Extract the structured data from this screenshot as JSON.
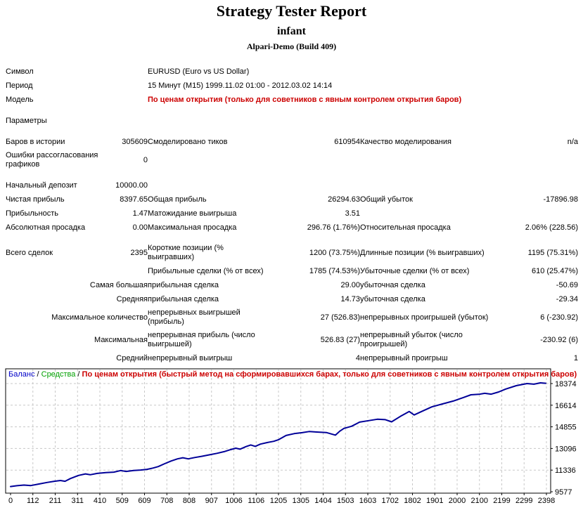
{
  "header": {
    "title": "Strategy Tester Report",
    "expert": "infant",
    "server": "Alpari-Demo (Build 409)"
  },
  "colors": {
    "model_red": "#CC0000",
    "balance_blue": "#0000C8",
    "equity_green": "#00A000",
    "line_navy": "#000098",
    "grid_gray": "#C8C8C8"
  },
  "table": {
    "rows": [
      {
        "cells": [
          {
            "t": "Символ"
          },
          {
            "t": ""
          },
          {
            "t": "EURUSD (Euro vs US Dollar)",
            "s": 4
          }
        ]
      },
      {
        "cells": [
          {
            "t": "Период"
          },
          {
            "t": ""
          },
          {
            "t": "15 Минут (M15) 1999.11.02 01:00 - 2012.03.02 14:14",
            "s": 4
          }
        ]
      },
      {
        "cells": [
          {
            "t": "Модель"
          },
          {
            "t": ""
          },
          {
            "t": "По ценам открытия (только для советников с явным контролем открытия баров)",
            "s": 4,
            "red": 1
          }
        ]
      },
      {
        "blank": 1
      },
      {
        "cells": [
          {
            "t": "Параметры"
          },
          {
            "t": ""
          },
          {
            "t": "",
            "s": 4
          }
        ]
      },
      {
        "blank": 1
      },
      {
        "cells": [
          {
            "t": "Баров в истории"
          },
          {
            "t": "305609",
            "r": 1
          },
          {
            "t": "Смоделировано тиков"
          },
          {
            "t": "610954",
            "r": 1
          },
          {
            "t": "Качество моделирования"
          },
          {
            "t": "n/a",
            "r": 1
          }
        ]
      },
      {
        "cells": [
          {
            "t": "Ошибки рассогласования графиков"
          },
          {
            "t": "0",
            "r": 1
          },
          {
            "t": ""
          },
          {
            "t": ""
          },
          {
            "t": ""
          },
          {
            "t": ""
          }
        ]
      },
      {
        "blank": 1
      },
      {
        "cells": [
          {
            "t": "Начальный депозит"
          },
          {
            "t": "10000.00",
            "r": 1
          },
          {
            "t": ""
          },
          {
            "t": ""
          },
          {
            "t": ""
          },
          {
            "t": ""
          }
        ]
      },
      {
        "cells": [
          {
            "t": "Чистая прибыль"
          },
          {
            "t": "8397.65",
            "r": 1
          },
          {
            "t": "Общая прибыль"
          },
          {
            "t": "26294.63",
            "r": 1
          },
          {
            "t": "Общий убыток"
          },
          {
            "t": "-17896.98",
            "r": 1
          }
        ]
      },
      {
        "cells": [
          {
            "t": "Прибыльность"
          },
          {
            "t": "1.47",
            "r": 1
          },
          {
            "t": "Матожидание выигрыша"
          },
          {
            "t": "3.51",
            "r": 1
          },
          {
            "t": ""
          },
          {
            "t": ""
          }
        ]
      },
      {
        "cells": [
          {
            "t": "Абсолютная просадка"
          },
          {
            "t": "0.00",
            "r": 1
          },
          {
            "t": "Максимальная просадка"
          },
          {
            "t": "296.76 (1.76%)",
            "r": 1
          },
          {
            "t": "Относительная просадка"
          },
          {
            "t": "2.06% (228.56)",
            "r": 1
          }
        ]
      },
      {
        "blank": 1
      },
      {
        "cells": [
          {
            "t": "Всего сделок"
          },
          {
            "t": "2395",
            "r": 1
          },
          {
            "t": "Короткие позиции (% выигравших)"
          },
          {
            "t": "1200 (73.75%)",
            "r": 1
          },
          {
            "t": "Длинные позиции (% выигравших)"
          },
          {
            "t": "1195 (75.31%)",
            "r": 1
          }
        ]
      },
      {
        "cells": [
          {
            "t": ""
          },
          {
            "t": ""
          },
          {
            "t": "Прибыльные сделки (% от всех)"
          },
          {
            "t": "1785 (74.53%)",
            "r": 1
          },
          {
            "t": "Убыточные сделки (% от всех)"
          },
          {
            "t": "610 (25.47%)",
            "r": 1
          }
        ]
      },
      {
        "cells": [
          {
            "t": "Самая большая",
            "s": 2,
            "rl": 1
          },
          {
            "t": "прибыльная сделка"
          },
          {
            "t": "29.00",
            "r": 1
          },
          {
            "t": "убыточная сделка"
          },
          {
            "t": "-50.69",
            "r": 1
          }
        ]
      },
      {
        "cells": [
          {
            "t": "Средняя",
            "s": 2,
            "rl": 1
          },
          {
            "t": "прибыльная сделка"
          },
          {
            "t": "14.73",
            "r": 1
          },
          {
            "t": "убыточная сделка"
          },
          {
            "t": "-29.34",
            "r": 1
          }
        ]
      },
      {
        "cells": [
          {
            "t": "Максимальное количество",
            "s": 2,
            "rl": 1
          },
          {
            "t": "непрерывных выигрышей (прибыль)"
          },
          {
            "t": "27 (526.83)",
            "r": 1
          },
          {
            "t": "непрерывных проигрышей (убыток)"
          },
          {
            "t": "6 (-230.92)",
            "r": 1
          }
        ]
      },
      {
        "cells": [
          {
            "t": "Максимальная",
            "s": 2,
            "rl": 1
          },
          {
            "t": "непрерывная прибыль (число выигрышей)"
          },
          {
            "t": "526.83 (27)",
            "r": 1
          },
          {
            "t": "непрерывный убыток (число проигрышей)"
          },
          {
            "t": "-230.92 (6)",
            "r": 1
          }
        ]
      },
      {
        "cells": [
          {
            "t": "Средний",
            "s": 2,
            "rl": 1
          },
          {
            "t": "непрерывный выигрыш"
          },
          {
            "t": "4",
            "r": 1
          },
          {
            "t": "непрерывный проигрыш"
          },
          {
            "t": "1",
            "r": 1
          }
        ]
      }
    ]
  },
  "chart_data": {
    "type": "line",
    "legend": {
      "balance_label": "Баланс",
      "equity_label": "Средства",
      "separator": " / ",
      "model_label": "По ценам открытия (быстрый метод на сформировавшихся барах, только для советников с явным контролем открытия баров)"
    },
    "xlabel": "",
    "ylabel": "",
    "x_ticks": [
      0,
      112,
      211,
      311,
      410,
      509,
      609,
      708,
      808,
      907,
      1006,
      1106,
      1205,
      1305,
      1404,
      1503,
      1603,
      1702,
      1802,
      1901,
      2000,
      2100,
      2199,
      2299,
      2398
    ],
    "y_ticks": [
      9577,
      11336,
      13096,
      14855,
      16614,
      18374
    ],
    "xlim": [
      0,
      2398
    ],
    "ylim": [
      9577,
      18374
    ],
    "grid": true,
    "legend_position": "top-left-inside",
    "colors": {
      "balance_text": "#0000C8",
      "equity_text": "#00A000",
      "model_text": "#CC0000",
      "line": "#000098",
      "grid": "#C8C8C8",
      "border": "#000000",
      "axis_text": "#000000"
    },
    "series": [
      {
        "name": "Баланс",
        "points": [
          [
            0,
            10000
          ],
          [
            29,
            10070
          ],
          [
            60,
            10120
          ],
          [
            91,
            10080
          ],
          [
            125,
            10200
          ],
          [
            163,
            10330
          ],
          [
            196,
            10430
          ],
          [
            223,
            10490
          ],
          [
            244,
            10430
          ],
          [
            268,
            10650
          ],
          [
            304,
            10900
          ],
          [
            335,
            11030
          ],
          [
            357,
            10960
          ],
          [
            388,
            11070
          ],
          [
            426,
            11130
          ],
          [
            462,
            11170
          ],
          [
            493,
            11300
          ],
          [
            517,
            11230
          ],
          [
            551,
            11310
          ],
          [
            582,
            11340
          ],
          [
            611,
            11400
          ],
          [
            637,
            11500
          ],
          [
            661,
            11620
          ],
          [
            690,
            11860
          ],
          [
            719,
            12080
          ],
          [
            747,
            12250
          ],
          [
            771,
            12340
          ],
          [
            795,
            12250
          ],
          [
            824,
            12360
          ],
          [
            857,
            12460
          ],
          [
            891,
            12580
          ],
          [
            924,
            12700
          ],
          [
            956,
            12840
          ],
          [
            984,
            13000
          ],
          [
            1008,
            13120
          ],
          [
            1027,
            13040
          ],
          [
            1054,
            13250
          ],
          [
            1075,
            13380
          ],
          [
            1095,
            13270
          ],
          [
            1118,
            13450
          ],
          [
            1150,
            13580
          ],
          [
            1178,
            13680
          ],
          [
            1198,
            13800
          ],
          [
            1233,
            14150
          ],
          [
            1269,
            14300
          ],
          [
            1305,
            14380
          ],
          [
            1336,
            14470
          ],
          [
            1370,
            14430
          ],
          [
            1413,
            14390
          ],
          [
            1454,
            14180
          ],
          [
            1473,
            14500
          ],
          [
            1492,
            14730
          ],
          [
            1526,
            14900
          ],
          [
            1562,
            15240
          ],
          [
            1602,
            15360
          ],
          [
            1641,
            15470
          ],
          [
            1677,
            15440
          ],
          [
            1705,
            15260
          ],
          [
            1744,
            15700
          ],
          [
            1784,
            16100
          ],
          [
            1806,
            15820
          ],
          [
            1839,
            16100
          ],
          [
            1885,
            16480
          ],
          [
            1933,
            16720
          ],
          [
            1981,
            16950
          ],
          [
            2026,
            17240
          ],
          [
            2060,
            17460
          ],
          [
            2096,
            17500
          ],
          [
            2122,
            17580
          ],
          [
            2151,
            17510
          ],
          [
            2184,
            17690
          ],
          [
            2215,
            17920
          ],
          [
            2263,
            18200
          ],
          [
            2311,
            18375
          ],
          [
            2342,
            18320
          ],
          [
            2371,
            18430
          ],
          [
            2395,
            18397.65
          ]
        ]
      }
    ]
  }
}
